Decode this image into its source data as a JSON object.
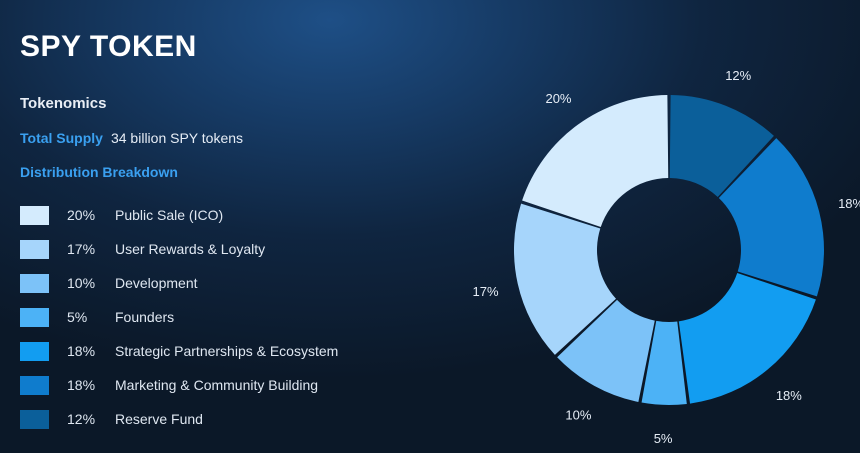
{
  "title": "SPY TOKEN",
  "subtitle": "Tokenomics",
  "total_supply": {
    "label": "Total Supply",
    "value": "34 billion SPY tokens"
  },
  "distribution_heading": "Distribution Breakdown",
  "chart_data": {
    "type": "pie",
    "donut": true,
    "categories": [
      "Public Sale (ICO)",
      "User Rewards & Loyalty",
      "Development",
      "Founders",
      "Strategic Partnerships & Ecosystem",
      "Marketing & Community Building",
      "Reserve Fund"
    ],
    "values": [
      20,
      17,
      10,
      5,
      18,
      18,
      12
    ],
    "value_labels": [
      "20%",
      "17%",
      "10%",
      "5%",
      "18%",
      "18%",
      "12%"
    ],
    "colors": [
      "#d4ebfd",
      "#a6d5fb",
      "#7cc2f8",
      "#4cb2f6",
      "#129df1",
      "#0f7ccd",
      "#0b5f9a"
    ],
    "legend_placement": "left"
  }
}
